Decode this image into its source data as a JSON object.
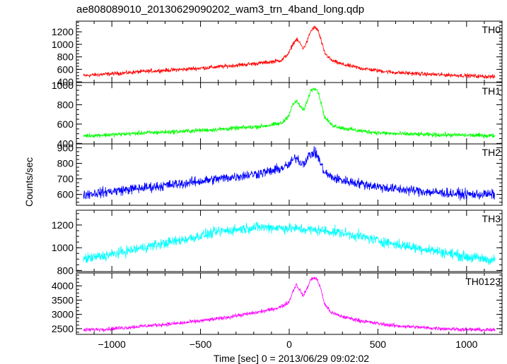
{
  "chart_data": {
    "title": "ae808089010_20130629090202_wam3_trn_4band_long.qdp",
    "xlabel": "Time [sec] 0 = 2013/06/29 09:02:02",
    "ylabel": "Counts/sec",
    "xlim": [
      -1200,
      1200
    ],
    "xticks": [
      -1000,
      -500,
      0,
      500,
      1000
    ],
    "xtick_labels": [
      "−1000",
      "−500",
      "0",
      "500",
      "1000"
    ],
    "panels": [
      {
        "type": "line",
        "name": "TH0",
        "color": "#ff0000",
        "ylim": [
          390,
          1370
        ],
        "yticks": [
          400,
          600,
          800,
          1000,
          1200
        ],
        "x": [
          -1160,
          -1000,
          -800,
          -600,
          -400,
          -200,
          -100,
          -40,
          0,
          20,
          40,
          60,
          80,
          100,
          120,
          140,
          160,
          180,
          200,
          240,
          300,
          400,
          500,
          600,
          800,
          1000,
          1160
        ],
        "y": [
          500,
          530,
          570,
          600,
          640,
          690,
          720,
          750,
          870,
          1000,
          1080,
          1020,
          930,
          1040,
          1200,
          1270,
          1240,
          1060,
          860,
          740,
          680,
          620,
          580,
          550,
          520,
          500,
          480
        ],
        "noise": 28
      },
      {
        "type": "line",
        "name": "TH1",
        "color": "#00ff00",
        "ylim": [
          395,
          1030
        ],
        "yticks": [
          400,
          600,
          800,
          1000
        ],
        "x": [
          -1160,
          -1000,
          -800,
          -600,
          -400,
          -200,
          -100,
          -40,
          0,
          20,
          40,
          60,
          80,
          100,
          120,
          140,
          160,
          180,
          200,
          240,
          300,
          400,
          500,
          600,
          800,
          1000,
          1160
        ],
        "y": [
          480,
          490,
          510,
          525,
          545,
          570,
          590,
          610,
          700,
          800,
          840,
          790,
          740,
          830,
          940,
          980,
          950,
          820,
          670,
          590,
          560,
          530,
          510,
          500,
          490,
          485,
          480
        ],
        "noise": 20
      },
      {
        "type": "line",
        "name": "TH2",
        "color": "#0000ff",
        "ylim": [
          530,
          925
        ],
        "yticks": [
          600,
          700,
          800,
          900
        ],
        "x": [
          -1160,
          -1000,
          -800,
          -600,
          -400,
          -200,
          -100,
          -40,
          0,
          20,
          40,
          60,
          80,
          100,
          120,
          140,
          160,
          180,
          200,
          240,
          300,
          400,
          500,
          600,
          800,
          1000,
          1160
        ],
        "y": [
          600,
          620,
          645,
          670,
          700,
          730,
          750,
          770,
          790,
          820,
          840,
          810,
          800,
          830,
          860,
          870,
          850,
          790,
          740,
          710,
          690,
          670,
          650,
          635,
          615,
          600,
          600
        ],
        "noise": 28
      },
      {
        "type": "line",
        "name": "TH3",
        "color": "#00ffff",
        "ylim": [
          790,
          1330
        ],
        "yticks": [
          800,
          1000,
          1200
        ],
        "x": [
          -1160,
          -1000,
          -800,
          -600,
          -400,
          -300,
          -200,
          -100,
          0,
          100,
          200,
          300,
          400,
          600,
          800,
          1000,
          1160
        ],
        "y": [
          900,
          940,
          1010,
          1070,
          1140,
          1160,
          1180,
          1180,
          1170,
          1160,
          1150,
          1130,
          1100,
          1030,
          980,
          920,
          890
        ],
        "noise": 40
      },
      {
        "type": "line",
        "name": "TH0123",
        "color": "#ff00ff",
        "ylim": [
          2300,
          4450
        ],
        "yticks": [
          2500,
          3000,
          3500,
          4000
        ],
        "x": [
          -1160,
          -1000,
          -800,
          -600,
          -400,
          -200,
          -100,
          -40,
          0,
          20,
          40,
          60,
          80,
          100,
          120,
          140,
          160,
          180,
          200,
          240,
          300,
          400,
          500,
          600,
          800,
          1000,
          1160
        ],
        "y": [
          2450,
          2500,
          2600,
          2700,
          2850,
          3050,
          3170,
          3280,
          3450,
          3800,
          4050,
          3850,
          3650,
          3900,
          4200,
          4300,
          4200,
          3850,
          3350,
          3050,
          2920,
          2780,
          2680,
          2600,
          2520,
          2470,
          2450
        ],
        "noise": 60
      }
    ]
  }
}
